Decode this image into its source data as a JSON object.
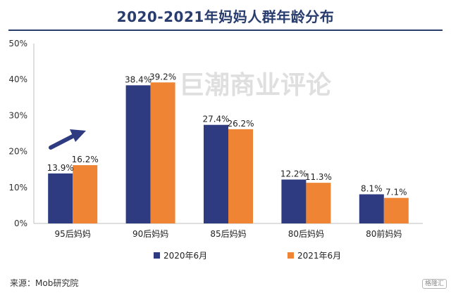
{
  "title": "2020-2021年妈妈人群年龄分布",
  "source": "来源：Mob研究院",
  "watermark": "巨潮商业评论",
  "badge": "格隆汇",
  "chart_data": {
    "type": "bar",
    "categories": [
      "95后妈妈",
      "90后妈妈",
      "85后妈妈",
      "80后妈妈",
      "80前妈妈"
    ],
    "series": [
      {
        "name": "2020年6月",
        "values": [
          13.9,
          38.4,
          27.4,
          12.2,
          8.1
        ],
        "labels": [
          "13.9%",
          "38.4%",
          "27.4%",
          "12.2%",
          "8.1%"
        ],
        "color": "#2e3b80"
      },
      {
        "name": "2021年6月",
        "values": [
          16.2,
          39.2,
          26.2,
          11.3,
          7.1
        ],
        "labels": [
          "16.2%",
          "39.2%",
          "26.2%",
          "11.3%",
          "7.1%"
        ],
        "color": "#ee8434"
      }
    ],
    "ylim": [
      0,
      50
    ],
    "yticks": [
      0,
      10,
      20,
      30,
      40,
      50
    ],
    "ytick_labels": [
      "0%",
      "10%",
      "20%",
      "30%",
      "40%",
      "50%"
    ],
    "grid": false,
    "legend": "bottom",
    "arrow_color": "#2e3b80"
  }
}
